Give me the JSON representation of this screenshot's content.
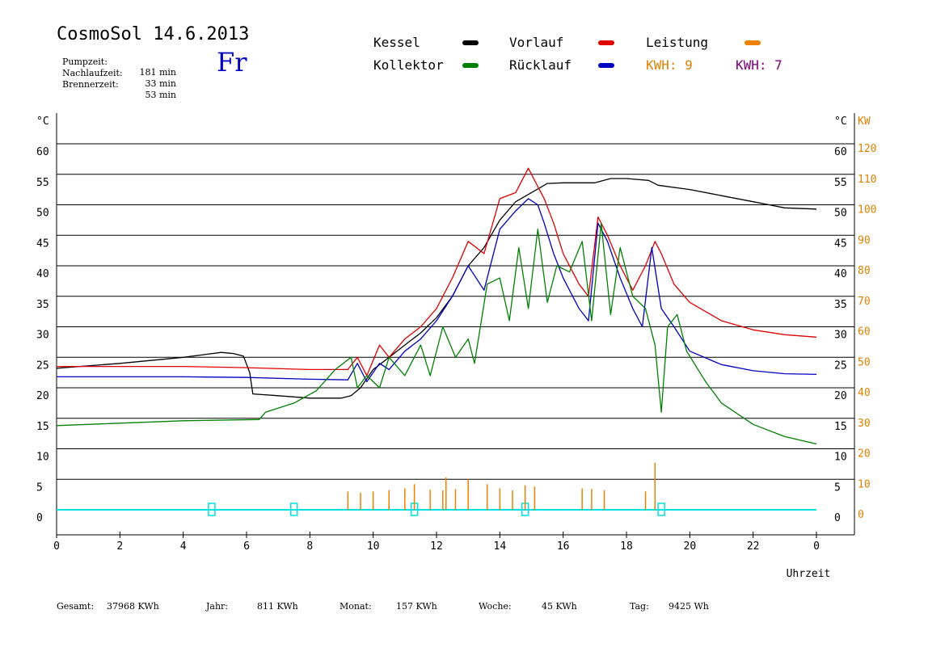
{
  "header": {
    "title": "CosmoSol 14.6.2013",
    "day": "Fr",
    "pump_label": "Pumpzeit:",
    "pump_value": "181 min",
    "nachlauf_label": "Nachlaufzeit:",
    "nachlauf_value": "33 min",
    "brenner_label": "Brennerzeit:",
    "brenner_value": "53 min"
  },
  "legend": {
    "kessel": "Kessel",
    "kollektor": "Kollektor",
    "vorlauf": "Vorlauf",
    "ruecklauf": "Rücklauf",
    "leistung": "Leistung",
    "kwh1": "KWH: 9",
    "kwh2": "KWH: 7"
  },
  "footer": {
    "gesamt_label": "Gesamt:",
    "gesamt_value": "37968 KWh",
    "jahr_label": "Jahr:",
    "jahr_value": "811 KWh",
    "monat_label": "Monat:",
    "monat_value": "157 KWh",
    "woche_label": "Woche:",
    "woche_value": "45 KWh",
    "tag_label": "Tag:",
    "tag_value": "9425 Wh"
  },
  "colors": {
    "kessel": "#000000",
    "kollektor": "#008000",
    "vorlauf": "#e00000",
    "ruecklauf": "#0000c0",
    "leistung": "#f08000",
    "kwh2": "#800080",
    "baseline": "#00e0e0",
    "grid": "#000000",
    "kw_axis": "#e08000"
  },
  "chart_data": {
    "type": "line",
    "xlabel": "Uhrzeit",
    "x_ticks": [
      "0",
      "2",
      "4",
      "6",
      "8",
      "10",
      "12",
      "14",
      "16",
      "18",
      "20",
      "22",
      "0"
    ],
    "xlim": [
      0,
      24
    ],
    "y_unit_left": "°C",
    "y_unit_right": "°C",
    "y2_unit": "KW",
    "y_ticks": [
      "0",
      "5",
      "10",
      "15",
      "20",
      "25",
      "30",
      "35",
      "40",
      "45",
      "50",
      "55",
      "60"
    ],
    "y2_ticks": [
      "0",
      "10",
      "20",
      "30",
      "40",
      "50",
      "60",
      "70",
      "80",
      "90",
      "100",
      "110",
      "120"
    ],
    "ylim": [
      0,
      60
    ],
    "y2lim": [
      0,
      120
    ],
    "grid": true,
    "series": [
      {
        "name": "Kessel",
        "color": "#000000",
        "points": [
          [
            0,
            23.2
          ],
          [
            2,
            24
          ],
          [
            4,
            25
          ],
          [
            5.2,
            25.8
          ],
          [
            5.6,
            25.6
          ],
          [
            5.9,
            25.2
          ],
          [
            6.1,
            22.5
          ],
          [
            6.2,
            19
          ],
          [
            7,
            18.7
          ],
          [
            8,
            18.3
          ],
          [
            9,
            18.3
          ],
          [
            9.3,
            18.7
          ],
          [
            9.6,
            20
          ],
          [
            10,
            23
          ],
          [
            10.5,
            25
          ],
          [
            11,
            27
          ],
          [
            11.5,
            29
          ],
          [
            12,
            31.5
          ],
          [
            12.5,
            35
          ],
          [
            13,
            40
          ],
          [
            13.5,
            43
          ],
          [
            14,
            47.5
          ],
          [
            14.5,
            50.5
          ],
          [
            15,
            52
          ],
          [
            15.5,
            53.5
          ],
          [
            16,
            53.6
          ],
          [
            17,
            53.6
          ],
          [
            17.5,
            54.3
          ],
          [
            18,
            54.3
          ],
          [
            18.7,
            54
          ],
          [
            19,
            53.2
          ],
          [
            20,
            52.5
          ],
          [
            21,
            51.5
          ],
          [
            22,
            50.5
          ],
          [
            23,
            49.5
          ],
          [
            24,
            49.3
          ]
        ]
      },
      {
        "name": "Vorlauf",
        "color": "#e00000",
        "points": [
          [
            0,
            23.5
          ],
          [
            4,
            23.5
          ],
          [
            6,
            23.3
          ],
          [
            8,
            23
          ],
          [
            9.2,
            23
          ],
          [
            9.5,
            25
          ],
          [
            9.8,
            22
          ],
          [
            10.2,
            27
          ],
          [
            10.5,
            25
          ],
          [
            11,
            28
          ],
          [
            11.5,
            30
          ],
          [
            12,
            33
          ],
          [
            12.5,
            38
          ],
          [
            13,
            44
          ],
          [
            13.5,
            42
          ],
          [
            14,
            51
          ],
          [
            14.5,
            52
          ],
          [
            14.9,
            56
          ],
          [
            15.2,
            53
          ],
          [
            15.4,
            51
          ],
          [
            15.7,
            47
          ],
          [
            16,
            42
          ],
          [
            16.5,
            37
          ],
          [
            16.8,
            35
          ],
          [
            17.1,
            48
          ],
          [
            17.4,
            45
          ],
          [
            17.8,
            40
          ],
          [
            18.2,
            36
          ],
          [
            18.6,
            40
          ],
          [
            18.9,
            44
          ],
          [
            19.1,
            42
          ],
          [
            19.5,
            37
          ],
          [
            20,
            34
          ],
          [
            21,
            31
          ],
          [
            22,
            29.5
          ],
          [
            23,
            28.7
          ],
          [
            24,
            28.3
          ]
        ]
      },
      {
        "name": "Rücklauf",
        "color": "#0000c0",
        "points": [
          [
            0,
            21.8
          ],
          [
            4,
            21.8
          ],
          [
            6,
            21.7
          ],
          [
            8,
            21.4
          ],
          [
            9.2,
            21.3
          ],
          [
            9.5,
            24
          ],
          [
            9.8,
            21
          ],
          [
            10.2,
            24
          ],
          [
            10.5,
            23
          ],
          [
            11,
            26
          ],
          [
            11.5,
            28
          ],
          [
            12,
            31
          ],
          [
            12.5,
            35
          ],
          [
            13,
            40
          ],
          [
            13.5,
            36
          ],
          [
            14,
            46
          ],
          [
            14.5,
            49
          ],
          [
            14.9,
            51
          ],
          [
            15.2,
            50
          ],
          [
            15.4,
            47
          ],
          [
            15.7,
            42
          ],
          [
            16,
            38
          ],
          [
            16.5,
            33
          ],
          [
            16.8,
            31
          ],
          [
            17.1,
            47
          ],
          [
            17.4,
            44
          ],
          [
            17.8,
            38
          ],
          [
            18.2,
            33
          ],
          [
            18.5,
            30
          ],
          [
            18.8,
            43
          ],
          [
            19.1,
            33
          ],
          [
            19.5,
            30
          ],
          [
            20,
            26
          ],
          [
            21,
            23.8
          ],
          [
            22,
            22.8
          ],
          [
            23,
            22.3
          ],
          [
            24,
            22.2
          ]
        ]
      },
      {
        "name": "Kollektor",
        "color": "#008000",
        "points": [
          [
            0,
            13.8
          ],
          [
            2,
            14.2
          ],
          [
            4,
            14.6
          ],
          [
            6.4,
            14.8
          ],
          [
            6.6,
            16
          ],
          [
            7.5,
            17.5
          ],
          [
            8.2,
            19.5
          ],
          [
            8.8,
            23
          ],
          [
            9.3,
            25
          ],
          [
            9.5,
            20
          ],
          [
            9.8,
            22
          ],
          [
            10.2,
            20
          ],
          [
            10.5,
            25
          ],
          [
            11,
            22
          ],
          [
            11.5,
            27
          ],
          [
            11.8,
            22
          ],
          [
            12.2,
            30
          ],
          [
            12.6,
            25
          ],
          [
            13,
            28
          ],
          [
            13.2,
            24
          ],
          [
            13.6,
            37
          ],
          [
            14,
            38
          ],
          [
            14.3,
            31
          ],
          [
            14.6,
            43
          ],
          [
            14.9,
            33
          ],
          [
            15.2,
            46
          ],
          [
            15.5,
            34
          ],
          [
            15.8,
            40
          ],
          [
            16.2,
            39
          ],
          [
            16.6,
            44
          ],
          [
            16.9,
            31
          ],
          [
            17.2,
            47
          ],
          [
            17.5,
            32
          ],
          [
            17.8,
            43
          ],
          [
            18.2,
            35
          ],
          [
            18.6,
            33
          ],
          [
            18.9,
            27
          ],
          [
            19.1,
            16
          ],
          [
            19.3,
            30
          ],
          [
            19.6,
            32
          ],
          [
            19.9,
            26
          ],
          [
            20.5,
            21
          ],
          [
            21,
            17.5
          ],
          [
            22,
            14
          ],
          [
            23,
            12
          ],
          [
            24,
            10.8
          ]
        ]
      }
    ],
    "leistung_spikes": [
      [
        9.2,
        3
      ],
      [
        9.6,
        2.8
      ],
      [
        10,
        3
      ],
      [
        10.5,
        3.2
      ],
      [
        11,
        3.5
      ],
      [
        11.3,
        4.2
      ],
      [
        11.8,
        3.3
      ],
      [
        12.2,
        3.2
      ],
      [
        12.3,
        5.3
      ],
      [
        12.6,
        3.4
      ],
      [
        13,
        5
      ],
      [
        13.6,
        4.2
      ],
      [
        14,
        3.5
      ],
      [
        14.4,
        3.2
      ],
      [
        14.8,
        4
      ],
      [
        15.1,
        3.8
      ],
      [
        16.6,
        3.5
      ],
      [
        16.9,
        3.4
      ],
      [
        17.3,
        3.2
      ],
      [
        18.6,
        3
      ],
      [
        18.9,
        7.7
      ]
    ],
    "baseline_markers": [
      4.9,
      7.5,
      11.3,
      14.8,
      19.1
    ]
  }
}
